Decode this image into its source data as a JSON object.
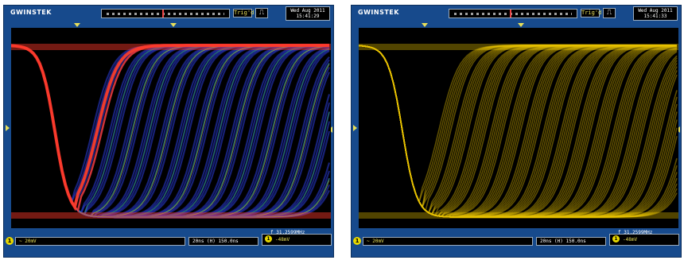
{
  "scopes": [
    {
      "brand": "GWINSTEK",
      "trigger_status": "Trig'd",
      "trigger_icon": "⎍",
      "date": "Wed Aug 2011",
      "time": "15:41:29",
      "channel": "1",
      "vdiv": "~ 20mV",
      "timebase": "20ns  (H)  150.0ns",
      "trigger_level": "-48mV",
      "frequency": "f  31.2599MHz",
      "display_mode": "color-graded",
      "colors": {
        "hot": "#ff3a2a",
        "warm": "#ffd21a",
        "mid": "#2ea84a",
        "cool": "#2a3cd8"
      }
    },
    {
      "brand": "GWINSTEK",
      "trigger_status": "Trig'd",
      "trigger_icon": "⎍",
      "date": "Wed Aug 2011",
      "time": "15:41:33",
      "channel": "1",
      "vdiv": "~ 20mV",
      "timebase": "20ns  (H)  150.0ns",
      "trigger_level": "-48mV",
      "frequency": "f  31.2599MHz",
      "display_mode": "persistence",
      "colors": {
        "trace": "#e8c200"
      }
    }
  ]
}
